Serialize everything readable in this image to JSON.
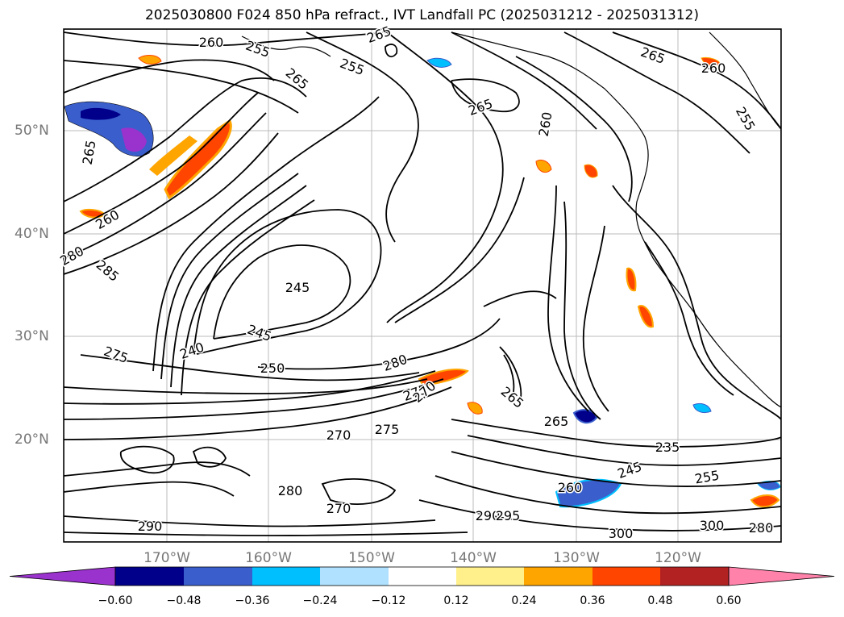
{
  "title": "2025030800 F024 850 hPa refract., IVT Landfall PC (2025031212 - 2025031312)",
  "latitude_labels": [
    "50°N",
    "40°N",
    "30°N",
    "20°N"
  ],
  "longitude_labels": [
    "170°W",
    "160°W",
    "150°W",
    "140°W",
    "130°W",
    "120°W"
  ],
  "contour_labels": [
    "260",
    "255",
    "265",
    "255",
    "265",
    "265",
    "260",
    "265",
    "260",
    "255",
    "265",
    "260",
    "280",
    "285",
    "245",
    "245",
    "275",
    "250",
    "240",
    "280",
    "275",
    "270",
    "265",
    "265",
    "235",
    "260",
    "245",
    "255",
    "270",
    "275",
    "280",
    "290",
    "300",
    "300",
    "290",
    "295",
    "270",
    "280"
  ],
  "colorbar": {
    "ticks": [
      "−0.60",
      "−0.48",
      "−0.36",
      "−0.24",
      "−0.12",
      "0.12",
      "0.24",
      "0.36",
      "0.48",
      "0.60"
    ],
    "colors": [
      "#9a32cd",
      "#00008b",
      "#3a5fcd",
      "#00bfff",
      "#b0e2ff",
      "#ffffff",
      "#fff08c",
      "#ffa500",
      "#ff4500",
      "#b22222",
      "#ff82ab"
    ]
  },
  "colors": {
    "contour": "#000000",
    "grid": "#bbbbbb",
    "coast": "#000000"
  }
}
